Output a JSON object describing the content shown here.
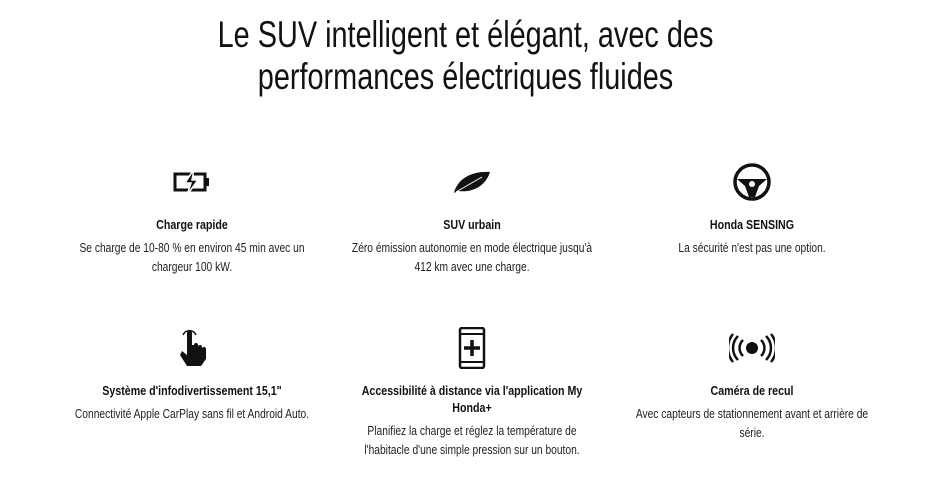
{
  "title": {
    "line1": "Le SUV intelligent et élégant, avec des",
    "line2": "performances électriques fluides"
  },
  "features": [
    {
      "icon": "battery-charge-icon",
      "title": "Charge rapide",
      "text": "Se charge de 10-80 % en environ 45 min avec un chargeur 100 kW."
    },
    {
      "icon": "leaf-icon",
      "title": "SUV urbain",
      "text": "Zéro émission autonomie en mode électrique jusqu'à 412 km avec une charge."
    },
    {
      "icon": "steering-wheel-icon",
      "title": "Honda SENSING",
      "text": "La sécurité n'est pas une option."
    },
    {
      "icon": "touch-hand-icon",
      "title": "Système d'infodivertissement 15,1\"",
      "text": "Connectivité Apple CarPlay sans fil et Android Auto."
    },
    {
      "icon": "phone-plus-icon",
      "title": "Accessibilité à distance via l'application My Honda+",
      "text": "Planifiez la charge et réglez la température de l'habitacle d'une simple pression sur un bouton."
    },
    {
      "icon": "sensor-icon",
      "title": "Caméra de recul",
      "text": "Avec capteurs de stationnement avant et arrière de série."
    }
  ]
}
